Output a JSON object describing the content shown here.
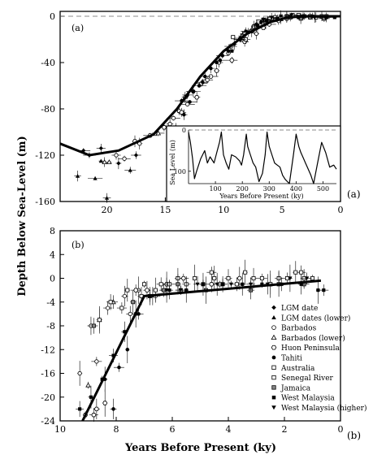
{
  "figure": {
    "ylabel": "Depth Below Sea-Level (m)",
    "xlabel": "Years Before Present (ky)"
  },
  "chart_data": [
    {
      "type": "scatter",
      "panel_label": "(a)",
      "outer_label": "(a)",
      "xlim": [
        24,
        0
      ],
      "ylim": [
        -160,
        0
      ],
      "xticks": [
        20,
        15,
        10,
        5,
        0
      ],
      "yticks": [
        0,
        -40,
        -80,
        -120,
        -160
      ],
      "reference_line_y": 0,
      "curve": {
        "x": [
          24,
          21.5,
          19,
          16,
          14,
          12,
          10,
          8,
          6,
          4.5,
          3,
          0
        ],
        "y": [
          -110,
          -120,
          -116,
          -102,
          -80,
          -52,
          -30,
          -15,
          -5,
          -1,
          0,
          0
        ]
      },
      "series": [
        {
          "name": "LGM date",
          "marker": "filled-diamond",
          "points": [
            [
              21.5,
              -120
            ],
            [
              20.5,
              -114
            ],
            [
              19,
              -127
            ],
            [
              22,
              -116
            ],
            [
              17.5,
              -120
            ]
          ]
        },
        {
          "name": "LGM dates (lower)",
          "marker": "filled-triangle",
          "points": [
            [
              22.5,
              -138
            ],
            [
              21,
              -140
            ],
            [
              18,
              -133
            ],
            [
              20,
              -157
            ],
            [
              20.5,
              -125
            ]
          ]
        },
        {
          "name": "Barbados",
          "marker": "open-circle",
          "points": [
            [
              18.5,
              -123
            ],
            [
              19.2,
              -120
            ],
            [
              17.2,
              -110
            ],
            [
              14.3,
              -88
            ],
            [
              13.8,
              -82
            ],
            [
              13.3,
              -70
            ],
            [
              12.6,
              -65
            ],
            [
              11.4,
              -55
            ],
            [
              10.4,
              -40
            ],
            [
              9.6,
              -32
            ],
            [
              8.6,
              -20
            ],
            [
              7.6,
              -12
            ],
            [
              7.2,
              -15
            ],
            [
              6.1,
              -7
            ],
            [
              5.3,
              -4
            ],
            [
              14.6,
              -93
            ],
            [
              13.1,
              -76
            ],
            [
              11.9,
              -58
            ]
          ]
        },
        {
          "name": "Barbados (lower)",
          "marker": "open-triangle",
          "points": [
            [
              20.2,
              -126
            ],
            [
              19.8,
              -126
            ],
            [
              15.6,
              -101
            ],
            [
              14.1,
              -96
            ]
          ]
        },
        {
          "name": "Huon Peninsula",
          "marker": "open-hexagon",
          "points": [
            [
              17.6,
              -108
            ],
            [
              16.3,
              -103
            ],
            [
              15.1,
              -96
            ],
            [
              12.3,
              -70
            ],
            [
              11.1,
              -52
            ],
            [
              9.3,
              -38
            ],
            [
              8.2,
              -22
            ],
            [
              6.6,
              -10
            ],
            [
              4.6,
              -2
            ],
            [
              13.6,
              -83
            ],
            [
              10.6,
              -47
            ]
          ]
        },
        {
          "name": "Tahiti",
          "marker": "filled-circle",
          "points": [
            [
              13.6,
              -73
            ],
            [
              13.1,
              -68
            ],
            [
              12.6,
              -65
            ],
            [
              12.1,
              -60
            ],
            [
              11.6,
              -52
            ],
            [
              11.1,
              -45
            ],
            [
              10.6,
              -40
            ],
            [
              10.1,
              -34
            ],
            [
              9.6,
              -30
            ],
            [
              9.1,
              -24
            ],
            [
              8.6,
              -19
            ],
            [
              8.1,
              -13
            ],
            [
              13.4,
              -85
            ],
            [
              12.9,
              -74
            ],
            [
              11.8,
              -57
            ],
            [
              7.2,
              -7
            ],
            [
              6.8,
              -5
            ],
            [
              10.3,
              -38
            ]
          ]
        },
        {
          "name": "Australia",
          "marker": "open-square",
          "points": [
            [
              8.2,
              -15
            ],
            [
              7.4,
              -9
            ],
            [
              6.6,
              -3
            ],
            [
              5.6,
              -1
            ],
            [
              4.6,
              0
            ],
            [
              3.6,
              1
            ],
            [
              2.6,
              0
            ],
            [
              1.6,
              0
            ],
            [
              9.2,
              -18
            ],
            [
              6.1,
              -2
            ]
          ]
        },
        {
          "name": "Senegal River",
          "marker": "open-square",
          "points": [
            [
              8.1,
              -20
            ],
            [
              7.6,
              -13
            ],
            [
              6.9,
              -8
            ],
            [
              6.2,
              -4
            ],
            [
              5.1,
              -2
            ],
            [
              4.1,
              1
            ],
            [
              3.1,
              0
            ],
            [
              2.1,
              -1
            ],
            [
              1.2,
              0
            ],
            [
              9.4,
              -26
            ]
          ]
        },
        {
          "name": "Jamaica",
          "marker": "grey-square",
          "points": [
            [
              7.2,
              -9
            ],
            [
              6.4,
              -6
            ],
            [
              5.6,
              -3
            ],
            [
              4.3,
              -1
            ],
            [
              3.4,
              -2
            ],
            [
              2.6,
              -1
            ],
            [
              1.4,
              -2
            ],
            [
              8.4,
              -17
            ]
          ]
        },
        {
          "name": "West Malaysia",
          "marker": "filled-square",
          "points": [
            [
              9.3,
              -30
            ],
            [
              8.6,
              -20
            ],
            [
              7.9,
              -14
            ],
            [
              7.1,
              -8
            ],
            [
              6.3,
              -4
            ],
            [
              5.4,
              -2
            ],
            [
              4.6,
              -1
            ],
            [
              3.6,
              -1
            ],
            [
              2.4,
              0
            ],
            [
              1.2,
              -1
            ],
            [
              0.5,
              -1
            ]
          ]
        },
        {
          "name": "West Malaysia (higher)",
          "marker": "filled-down-triangle",
          "points": [
            [
              6.6,
              -3
            ],
            [
              5.9,
              -1
            ],
            [
              5.1,
              0
            ],
            [
              4.2,
              1
            ],
            [
              3.2,
              0
            ],
            [
              2.2,
              -1
            ],
            [
              1.3,
              -1
            ]
          ]
        }
      ],
      "inset": {
        "type": "line",
        "ylabel": "Sea Level (m)",
        "xlabel": "Years Before Present (ky)",
        "xlim": [
          0,
          550
        ],
        "ylim": [
          130,
          0
        ],
        "xticks": [
          100,
          200,
          300,
          400,
          500
        ],
        "yticks": [
          0,
          100
        ],
        "reference_line_y": 0,
        "x": [
          0,
          7,
          15,
          22,
          30,
          45,
          60,
          70,
          80,
          95,
          105,
          115,
          122,
          130,
          140,
          150,
          160,
          175,
          190,
          197,
          205,
          215,
          220,
          230,
          240,
          250,
          262,
          275,
          285,
          292,
          300,
          310,
          320,
          330,
          340,
          350,
          360,
          375,
          390,
          400,
          410,
          418,
          425,
          435,
          445,
          455,
          465,
          480,
          495,
          510,
          525,
          540,
          550
        ],
        "y": [
          5,
          30,
          70,
          118,
          100,
          70,
          50,
          80,
          65,
          80,
          55,
          30,
          5,
          60,
          80,
          95,
          60,
          65,
          75,
          85,
          60,
          10,
          40,
          60,
          80,
          90,
          125,
          105,
          60,
          5,
          40,
          60,
          80,
          85,
          90,
          110,
          120,
          130,
          60,
          10,
          40,
          55,
          65,
          80,
          95,
          110,
          130,
          80,
          30,
          55,
          90,
          85,
          95
        ]
      }
    },
    {
      "type": "scatter",
      "panel_label": "(b)",
      "outer_label": "(b)",
      "xlim": [
        10,
        0
      ],
      "ylim": [
        -24,
        8
      ],
      "xticks": [
        10,
        8,
        6,
        4,
        2,
        0
      ],
      "yticks": [
        8,
        4,
        0,
        -4,
        -8,
        -12,
        -16,
        -20,
        -24
      ],
      "curve": {
        "x": [
          9.2,
          7,
          0.7
        ],
        "y": [
          -24,
          -3,
          -0.4
        ]
      },
      "legend": {
        "placement": "lower-right"
      },
      "series": [
        {
          "name": "LGM date",
          "marker": "filled-diamond",
          "points": []
        },
        {
          "name": "LGM dates (lower)",
          "marker": "filled-triangle",
          "points": []
        },
        {
          "name": "Barbados",
          "marker": "open-circle",
          "points": [
            [
              8.3,
              -5
            ],
            [
              7.7,
              -3
            ],
            [
              7.2,
              -2
            ],
            [
              6.6,
              -3
            ],
            [
              8.9,
              -8
            ],
            [
              9.3,
              -16
            ],
            [
              8.7,
              -14
            ],
            [
              7.5,
              -6
            ]
          ]
        },
        {
          "name": "Barbados (lower)",
          "marker": "open-triangle",
          "points": [
            [
              8.6,
              -7
            ],
            [
              9.0,
              -18
            ],
            [
              8.1,
              -4
            ]
          ]
        },
        {
          "name": "Huon Peninsula",
          "marker": "open-hexagon",
          "points": [
            [
              8.7,
              -22
            ],
            [
              8.4,
              -21
            ],
            [
              7.3,
              -2
            ],
            [
              6.9,
              -2
            ],
            [
              6.2,
              -1
            ],
            [
              5.6,
              0
            ],
            [
              4.6,
              -1
            ],
            [
              3.6,
              0
            ],
            [
              9.1,
              -23
            ],
            [
              8.8,
              -23
            ]
          ]
        },
        {
          "name": "Tahiti",
          "marker": "filled-circle",
          "points": [
            [
              8.1,
              -22
            ],
            [
              7.6,
              -12
            ],
            [
              7.2,
              -6
            ],
            [
              6.8,
              -3
            ],
            [
              8.4,
              -17
            ],
            [
              7.9,
              -15
            ]
          ]
        },
        {
          "name": "Australia",
          "marker": "open-square",
          "points": [
            [
              8.2,
              -4
            ],
            [
              7.6,
              -2
            ],
            [
              7.0,
              -1
            ],
            [
              6.4,
              -1
            ],
            [
              5.8,
              0
            ],
            [
              5.2,
              0
            ],
            [
              4.6,
              1
            ],
            [
              4.0,
              0
            ],
            [
              3.4,
              1
            ],
            [
              2.8,
              0
            ],
            [
              2.2,
              0
            ],
            [
              1.6,
              1
            ],
            [
              1.0,
              0
            ],
            [
              1.4,
              1
            ],
            [
              2.5,
              -1
            ]
          ]
        },
        {
          "name": "Senegal River",
          "marker": "open-square",
          "points": [
            [
              8.6,
              -7
            ],
            [
              7.8,
              -5
            ],
            [
              7.1,
              -3
            ],
            [
              6.6,
              -2
            ],
            [
              6.1,
              -1
            ],
            [
              5.5,
              -1
            ],
            [
              4.9,
              -1
            ],
            [
              4.3,
              -1
            ],
            [
              3.7,
              -1
            ],
            [
              3.1,
              0
            ],
            [
              2.5,
              -1
            ],
            [
              1.9,
              0
            ],
            [
              1.3,
              0
            ],
            [
              4.5,
              0
            ],
            [
              5.7,
              -2
            ]
          ]
        },
        {
          "name": "Jamaica",
          "marker": "grey-square",
          "points": [
            [
              8.8,
              -8
            ],
            [
              7.4,
              -4
            ],
            [
              6.8,
              -3
            ],
            [
              6.3,
              -2
            ],
            [
              5.8,
              -1
            ],
            [
              4.8,
              -2
            ],
            [
              4.2,
              -1
            ],
            [
              3.2,
              -2
            ],
            [
              2.2,
              -1
            ],
            [
              1.3,
              -1
            ]
          ]
        },
        {
          "name": "West Malaysia",
          "marker": "filled-square",
          "points": [
            [
              9.3,
              -22
            ],
            [
              8.9,
              -20
            ],
            [
              8.5,
              -17
            ],
            [
              8.1,
              -13
            ],
            [
              7.7,
              -9
            ],
            [
              7.3,
              -6
            ],
            [
              6.8,
              -3
            ],
            [
              6.1,
              -2
            ],
            [
              5.5,
              -2
            ],
            [
              4.9,
              -1
            ],
            [
              4.2,
              -1
            ],
            [
              3.5,
              -1
            ],
            [
              2.8,
              -1
            ],
            [
              2.1,
              -1
            ],
            [
              1.4,
              -1
            ],
            [
              0.8,
              -2
            ],
            [
              0.6,
              -2
            ]
          ]
        },
        {
          "name": "West Malaysia (higher)",
          "marker": "filled-down-triangle",
          "points": [
            [
              6.7,
              -3
            ],
            [
              6.2,
              -2
            ],
            [
              5.7,
              -2
            ],
            [
              5.1,
              -1
            ],
            [
              4.4,
              -1
            ],
            [
              3.9,
              -1
            ],
            [
              3.2,
              -1
            ],
            [
              2.6,
              -1
            ],
            [
              1.8,
              0
            ],
            [
              1.2,
              0
            ]
          ]
        }
      ]
    }
  ]
}
